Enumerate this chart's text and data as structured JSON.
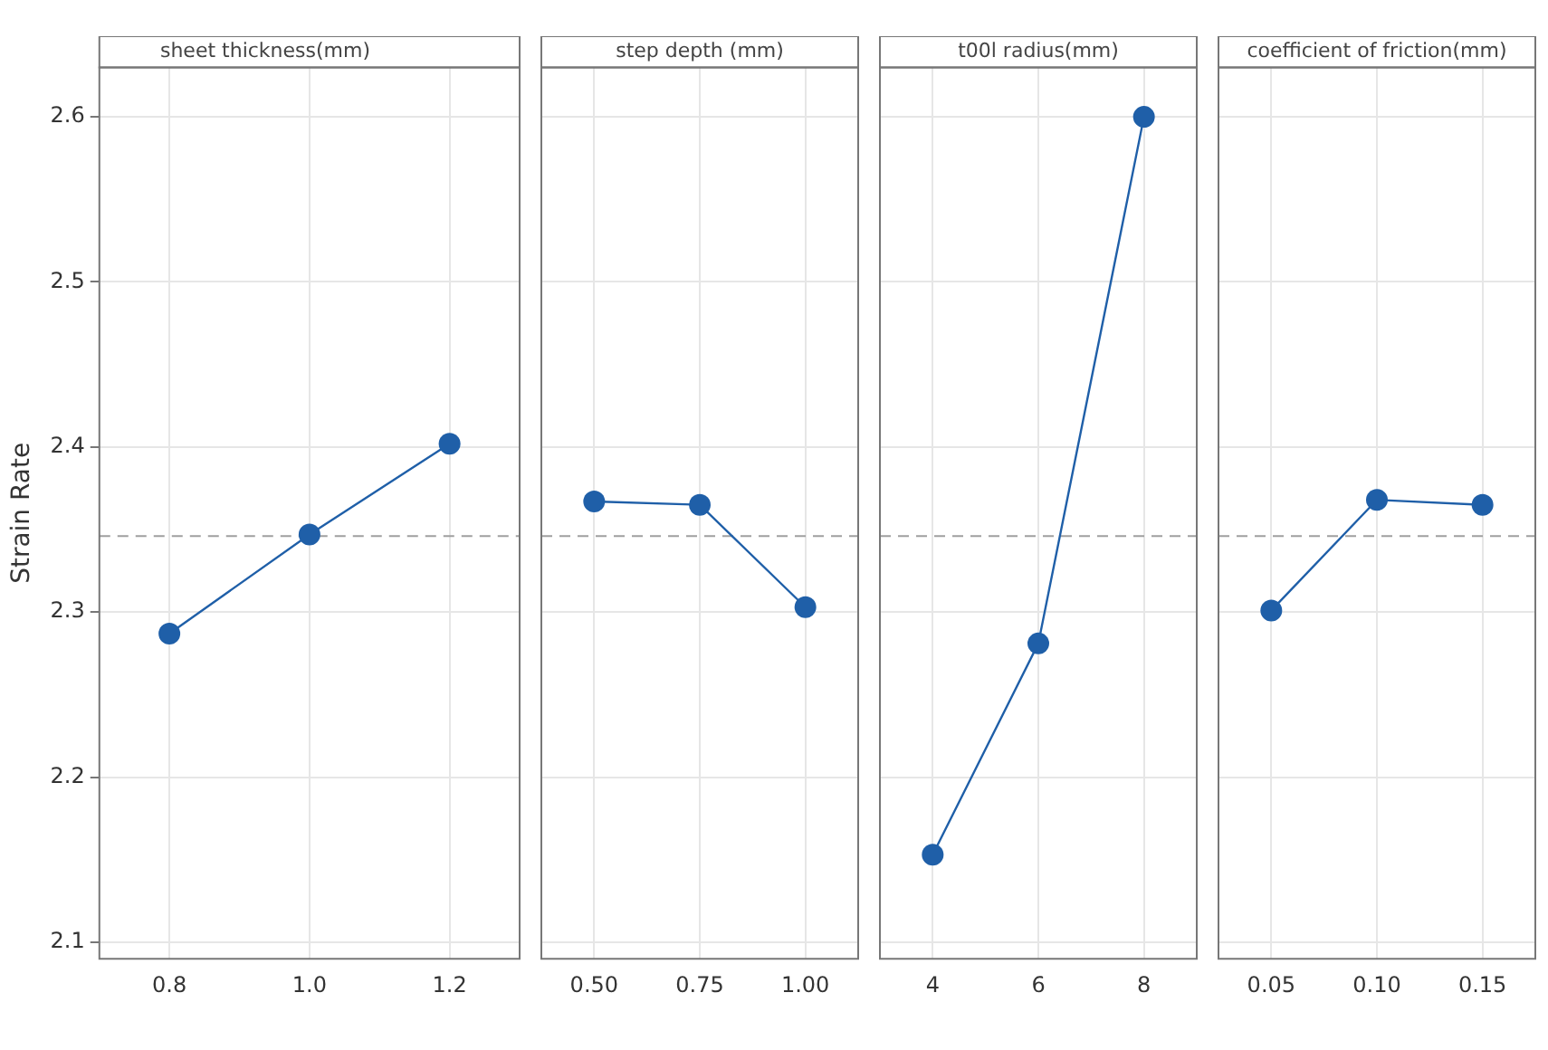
{
  "chart_data": [
    {
      "type": "line",
      "title": "sheet thickness(mm)",
      "ylabel": "Strain Rate",
      "categories": [
        "0.8",
        "1.0",
        "1.2"
      ],
      "series": [
        {
          "color": "#1f5fa8",
          "values": [
            2.287,
            2.347,
            2.402
          ]
        }
      ],
      "ylim": [
        2.09,
        2.63
      ],
      "yticks": [
        2.1,
        2.2,
        2.3,
        2.4,
        2.5,
        2.6
      ],
      "grid": true,
      "marker": "circle",
      "line_style": "solid",
      "ref_lines": [
        {
          "axis": "y",
          "value": 2.346,
          "color": "#a0a0a0",
          "line_style": "dashed"
        }
      ]
    },
    {
      "type": "line",
      "title": "step depth (mm)",
      "categories": [
        "0.50",
        "0.75",
        "1.00"
      ],
      "series": [
        {
          "color": "#1f5fa8",
          "values": [
            2.367,
            2.365,
            2.303
          ]
        }
      ],
      "ylim": [
        2.09,
        2.63
      ],
      "yticks": [
        2.1,
        2.2,
        2.3,
        2.4,
        2.5,
        2.6
      ],
      "grid": true,
      "marker": "circle",
      "line_style": "solid",
      "tick_labels": "x",
      "ref_lines": [
        {
          "axis": "y",
          "value": 2.346,
          "color": "#a0a0a0",
          "line_style": "dashed"
        }
      ]
    },
    {
      "type": "line",
      "title": "t00l radius(mm)",
      "categories": [
        "4",
        "6",
        "8"
      ],
      "series": [
        {
          "color": "#1f5fa8",
          "values": [
            2.153,
            2.281,
            2.6
          ]
        }
      ],
      "ylim": [
        2.09,
        2.63
      ],
      "yticks": [
        2.1,
        2.2,
        2.3,
        2.4,
        2.5,
        2.6
      ],
      "grid": true,
      "marker": "circle",
      "line_style": "solid",
      "tick_labels": "x",
      "ref_lines": [
        {
          "axis": "y",
          "value": 2.346,
          "color": "#a0a0a0",
          "line_style": "dashed"
        }
      ]
    },
    {
      "type": "line",
      "title": "coefficient of friction(mm)",
      "categories": [
        "0.05",
        "0.10",
        "0.15"
      ],
      "series": [
        {
          "color": "#1f5fa8",
          "values": [
            2.301,
            2.368,
            2.365
          ]
        }
      ],
      "ylim": [
        2.09,
        2.63
      ],
      "yticks": [
        2.1,
        2.2,
        2.3,
        2.4,
        2.5,
        2.6
      ],
      "grid": true,
      "marker": "circle",
      "line_style": "solid",
      "tick_labels": "x",
      "ref_lines": [
        {
          "axis": "y",
          "value": 2.346,
          "color": "#a0a0a0",
          "line_style": "dashed"
        }
      ]
    }
  ]
}
